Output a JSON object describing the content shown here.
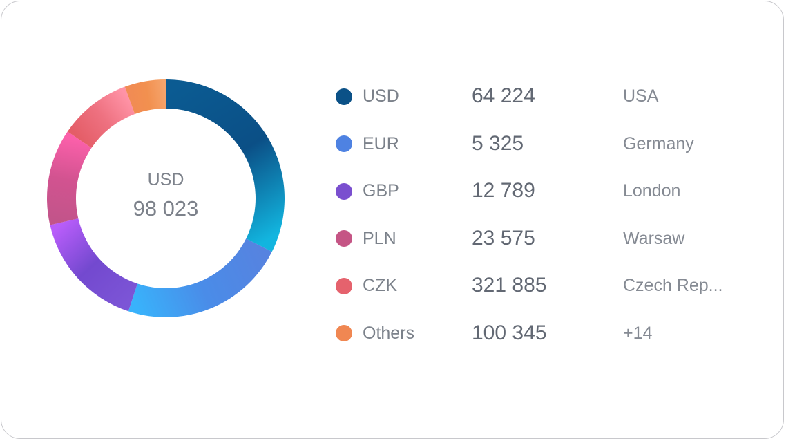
{
  "chart_data": {
    "type": "pie",
    "center": {
      "currency": "USD",
      "total": "98 023"
    },
    "segments": [
      {
        "code": "USD",
        "amount": "64 224",
        "country": "USA",
        "share": 0.324,
        "color": "#0b5187",
        "gradient": [
          "#0b5b92",
          "#0b4f86",
          "#12b5df"
        ]
      },
      {
        "code": "EUR",
        "amount": "5 325",
        "country": "Germany",
        "share": 0.227,
        "color": "#4e82e2",
        "gradient": [
          "#5683e0",
          "#4a8ce8",
          "#39b2fb"
        ]
      },
      {
        "code": "GBP",
        "amount": "12 789",
        "country": "London",
        "share": 0.163,
        "color": "#7a4fcf",
        "gradient": [
          "#7c55d6",
          "#7349cf",
          "#b85dfa"
        ]
      },
      {
        "code": "PLN",
        "amount": "23 575",
        "country": "Warsaw",
        "share": 0.131,
        "color": "#c55585",
        "gradient": [
          "#c2548a",
          "#d25390",
          "#fb60aa"
        ]
      },
      {
        "code": "CZK",
        "amount": "321 885",
        "country": "Czech Rep...",
        "share": 0.099,
        "color": "#e5626d",
        "gradient": [
          "#e45d67",
          "#ee7180",
          "#ff93a6"
        ]
      },
      {
        "code": "Others",
        "amount": "100 345",
        "country": "+14",
        "share": 0.056,
        "color": "#f08752",
        "gradient": [
          "#f18b54",
          "#f2904f",
          "#f5a46c"
        ]
      }
    ]
  }
}
